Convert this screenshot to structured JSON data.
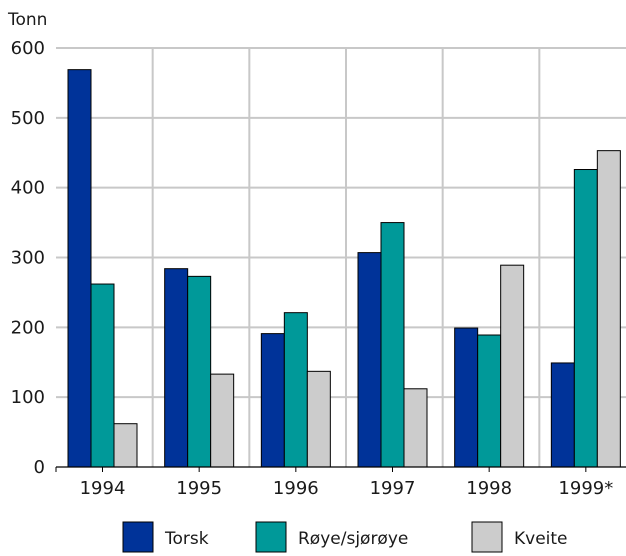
{
  "chart_data": {
    "type": "bar",
    "unit_label": "Tonn",
    "categories": [
      "1994",
      "1995",
      "1996",
      "1997",
      "1998",
      "1999*"
    ],
    "series": [
      {
        "name": "Torsk",
        "color": "#003399",
        "values": [
          569,
          284,
          191,
          307,
          199,
          149
        ]
      },
      {
        "name": "Røye/sjørøye",
        "color": "#009999",
        "values": [
          262,
          273,
          221,
          350,
          189,
          426
        ]
      },
      {
        "name": "Kveite",
        "color": "#cccccc",
        "values": [
          62,
          133,
          137,
          112,
          289,
          453
        ]
      }
    ],
    "y_ticks": [
      "0",
      "100",
      "200",
      "300",
      "400",
      "500",
      "600"
    ],
    "ylim": [
      0,
      600
    ],
    "grid": true,
    "legend_position": "bottom"
  }
}
